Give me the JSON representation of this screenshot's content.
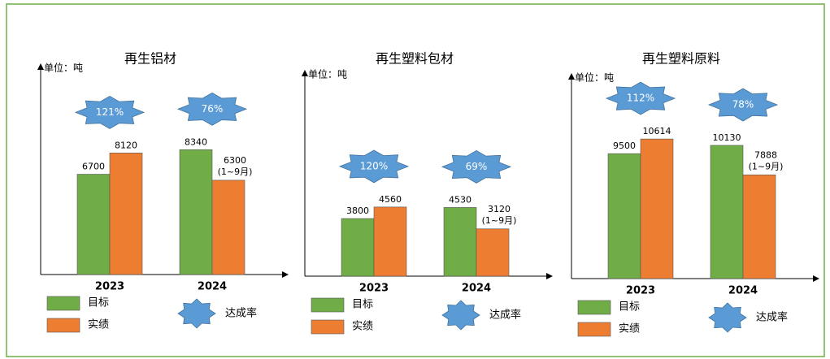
{
  "chart_data": [
    {
      "type": "bar",
      "title": "再生铝材",
      "y_label": "单位：吨",
      "categories": [
        "2023",
        "2024"
      ],
      "ylim": [
        0,
        14000
      ],
      "series": [
        {
          "name": "目标",
          "color": "#70ad47",
          "values": [
            6700,
            8340
          ]
        },
        {
          "name": "实绩",
          "color": "#ed7d31",
          "values": [
            8120,
            6300
          ],
          "notes": [
            null,
            "(1~9月)"
          ]
        }
      ],
      "rate": {
        "name": "达成率",
        "color": "#5b9bd5",
        "values": [
          121,
          76
        ],
        "value_labels": [
          "121%",
          "76%"
        ]
      }
    },
    {
      "type": "bar",
      "title": "再生塑料包材",
      "y_label": "单位：吨",
      "categories": [
        "2023",
        "2024"
      ],
      "ylim": [
        0,
        13500
      ],
      "series": [
        {
          "name": "目标",
          "color": "#70ad47",
          "values": [
            3800,
            4530
          ]
        },
        {
          "name": "实绩",
          "color": "#ed7d31",
          "values": [
            4560,
            3120
          ],
          "notes": [
            null,
            "(1~9月)"
          ]
        }
      ],
      "rate": {
        "name": "达成率",
        "color": "#5b9bd5",
        "values": [
          120,
          69
        ],
        "value_labels": [
          "120%",
          "69%"
        ]
      }
    },
    {
      "type": "bar",
      "title": "再生塑料原料",
      "y_label": "单位：吨",
      "categories": [
        "2023",
        "2024"
      ],
      "ylim": [
        0,
        15500
      ],
      "series": [
        {
          "name": "目标",
          "color": "#70ad47",
          "values": [
            9500,
            10130
          ]
        },
        {
          "name": "实绩",
          "color": "#ed7d31",
          "values": [
            10614,
            7888
          ],
          "notes": [
            null,
            "(1~9月)"
          ]
        }
      ],
      "rate": {
        "name": "达成率",
        "color": "#5b9bd5",
        "values": [
          112,
          78
        ],
        "value_labels": [
          "112%",
          "78%"
        ]
      }
    }
  ]
}
